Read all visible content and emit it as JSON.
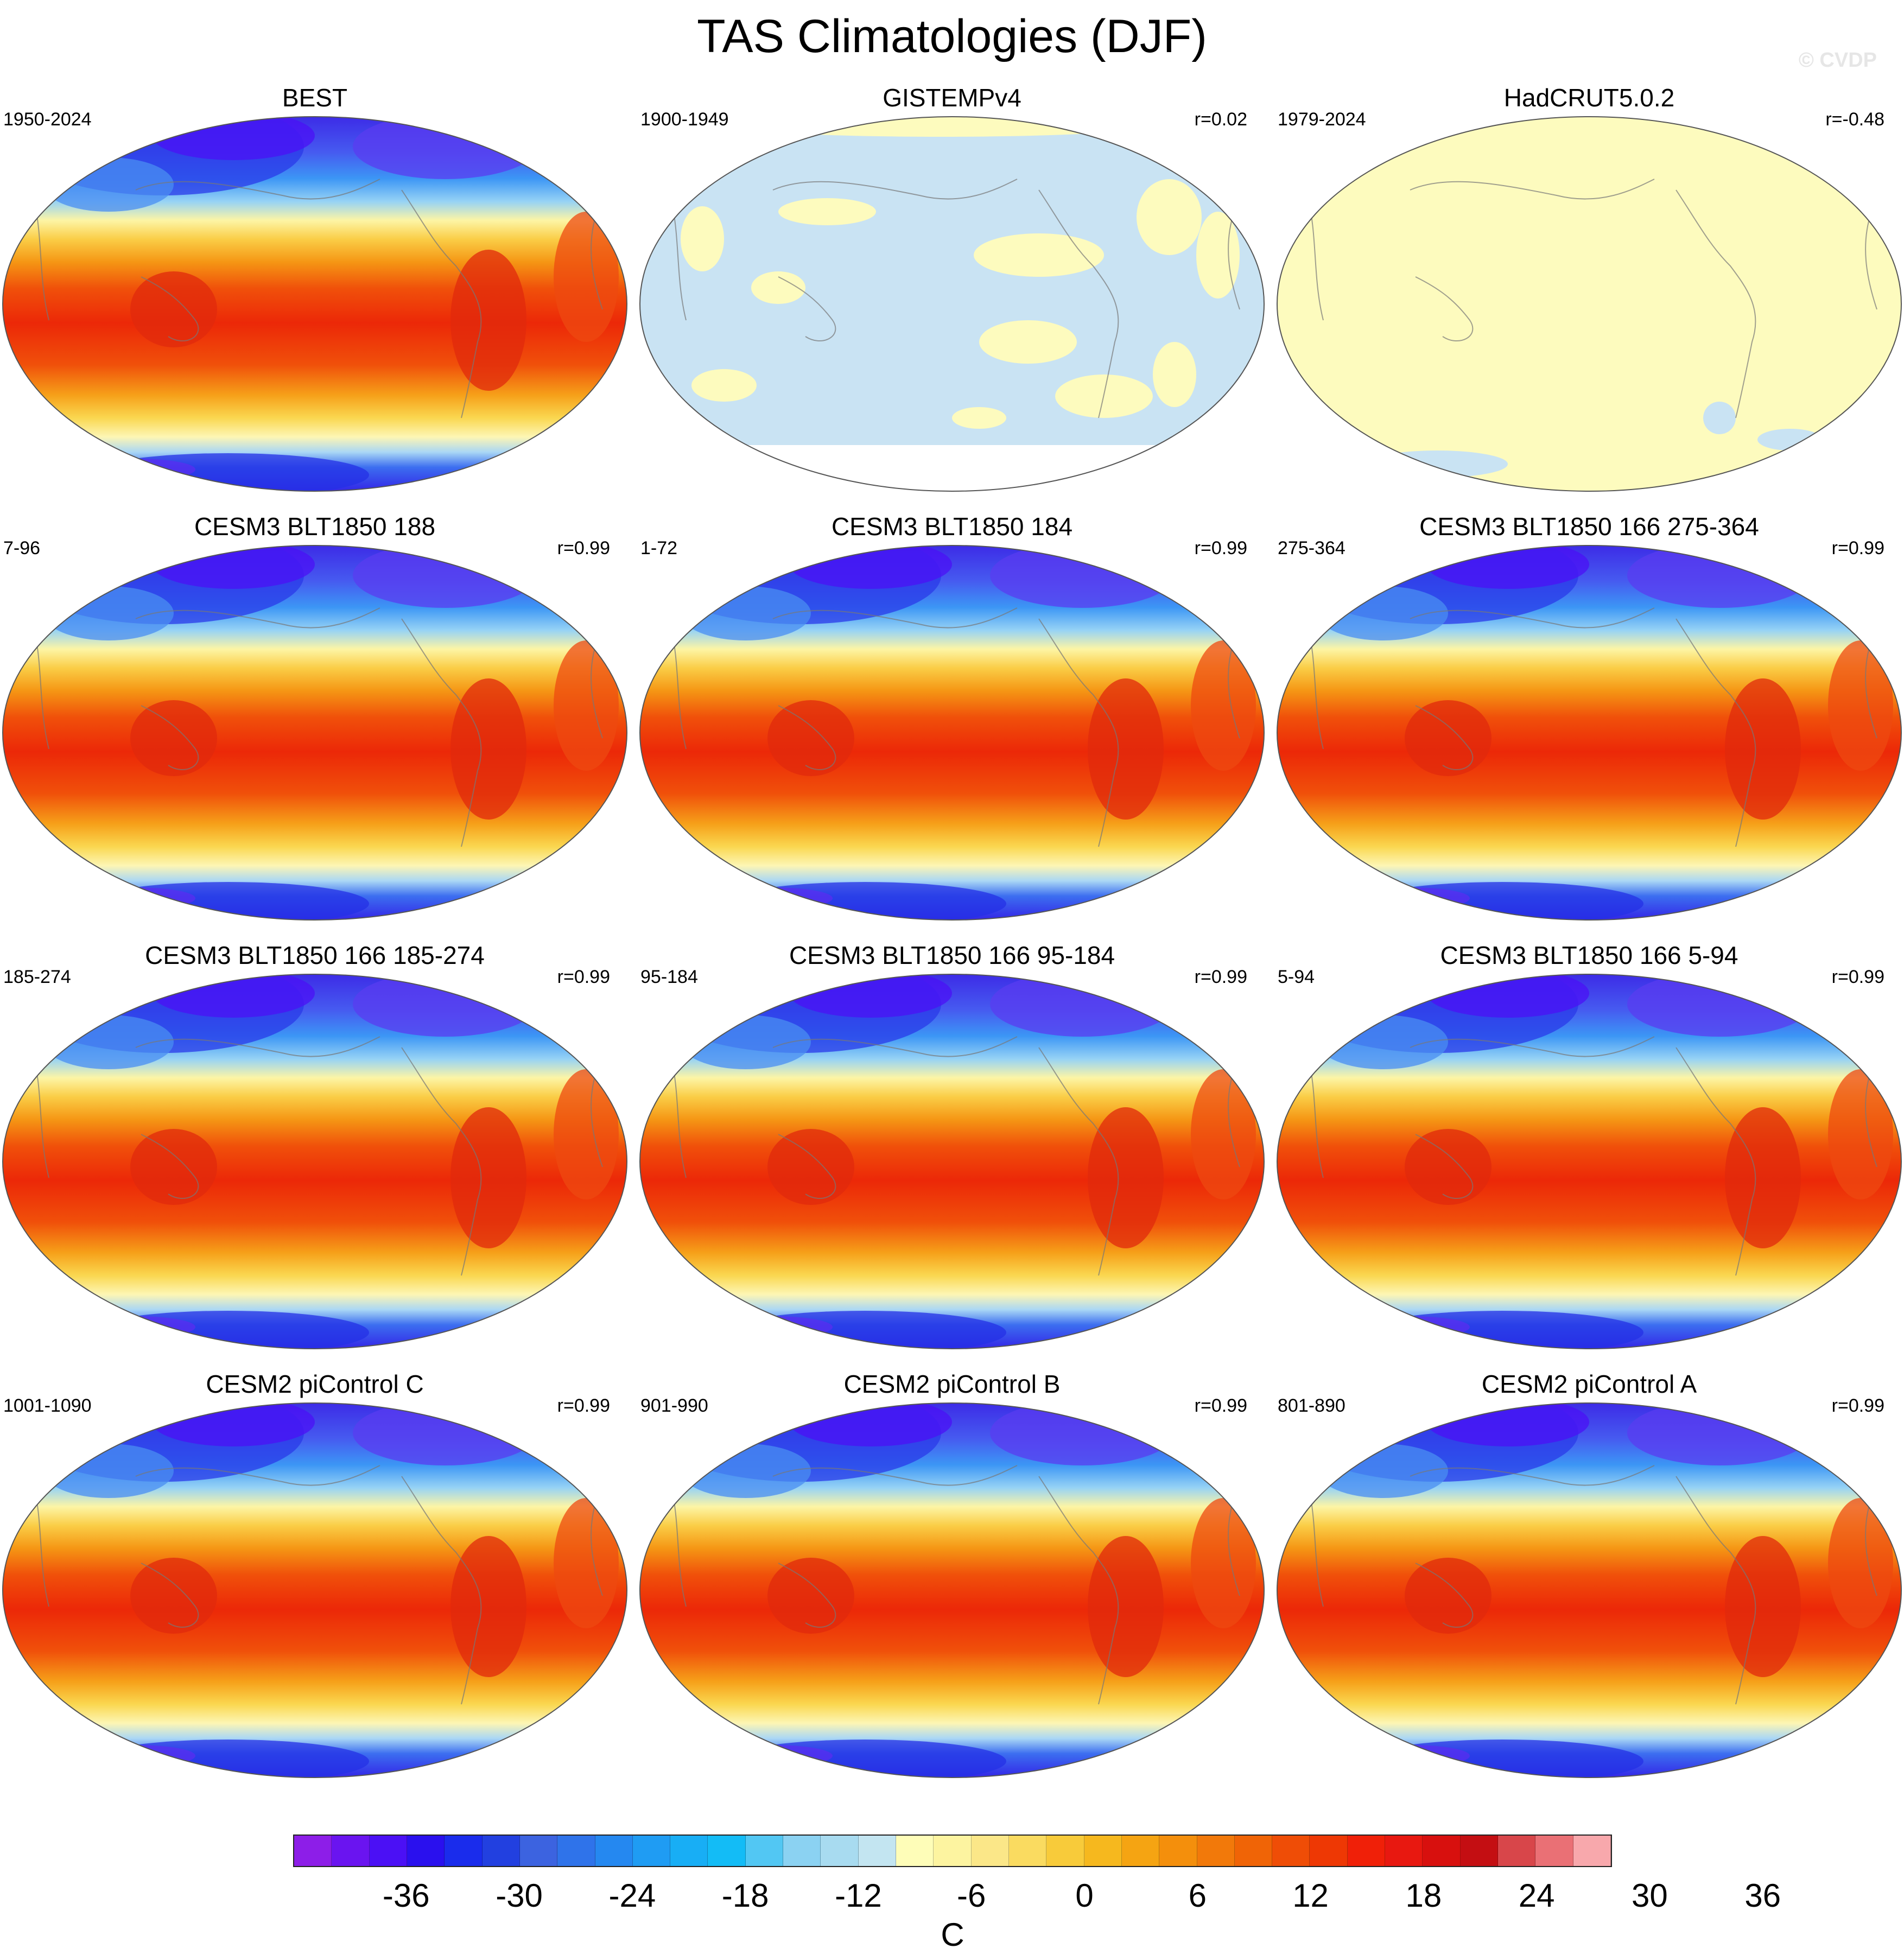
{
  "title": "TAS Climatologies (DJF)",
  "watermark": "© CVDP",
  "panels": [
    {
      "title": "BEST",
      "years": "1950-2024",
      "r": "",
      "style": "obs_full"
    },
    {
      "title": "GISTEMPv4",
      "years": "1900-1949",
      "r": "r=0.02",
      "style": "obs_gis"
    },
    {
      "title": "HadCRUT5.0.2",
      "years": "1979-2024",
      "r": "r=-0.48",
      "style": "obs_had"
    },
    {
      "title": "CESM3 BLT1850 188",
      "years": "7-96",
      "r": "r=0.99",
      "style": "model"
    },
    {
      "title": "CESM3 BLT1850 184",
      "years": "1-72",
      "r": "r=0.99",
      "style": "model"
    },
    {
      "title": "CESM3 BLT1850 166 275-364",
      "years": "275-364",
      "r": "r=0.99",
      "style": "model"
    },
    {
      "title": "CESM3 BLT1850 166 185-274",
      "years": "185-274",
      "r": "r=0.99",
      "style": "model"
    },
    {
      "title": "CESM3 BLT1850 166 95-184",
      "years": "95-184",
      "r": "r=0.99",
      "style": "model"
    },
    {
      "title": "CESM3 BLT1850 166 5-94",
      "years": "5-94",
      "r": "r=0.99",
      "style": "model"
    },
    {
      "title": "CESM2 piControl C",
      "years": "1001-1090",
      "r": "r=0.99",
      "style": "model"
    },
    {
      "title": "CESM2 piControl B",
      "years": "901-990",
      "r": "r=0.99",
      "style": "model"
    },
    {
      "title": "CESM2 piControl A",
      "years": "801-890",
      "r": "r=0.99",
      "style": "model"
    }
  ],
  "colorbar": {
    "units": "C",
    "tick_labels": [
      "-36",
      "-30",
      "-24",
      "-18",
      "-12",
      "-6",
      "0",
      "6",
      "12",
      "18",
      "24",
      "30",
      "36"
    ],
    "colors": [
      "#8d1ee8",
      "#6a14f0",
      "#4b10f5",
      "#2a10ee",
      "#1a2cec",
      "#2240e0",
      "#3c63e0",
      "#2f73ea",
      "#2588f0",
      "#1f9cf3",
      "#18aef5",
      "#13bcf6",
      "#52c7f3",
      "#8bd2f2",
      "#a8dbf0",
      "#c3e5f1",
      "#fefdb8",
      "#fdf4a0",
      "#fbe788",
      "#fadb60",
      "#f8cb3a",
      "#f6b81e",
      "#f5a412",
      "#f48f0c",
      "#f2790a",
      "#f06406",
      "#ef4d06",
      "#ee3804",
      "#f02008",
      "#e81810",
      "#d8100e",
      "#c40e12",
      "#d8464a",
      "#ea7075",
      "#f8a8ac"
    ]
  }
}
